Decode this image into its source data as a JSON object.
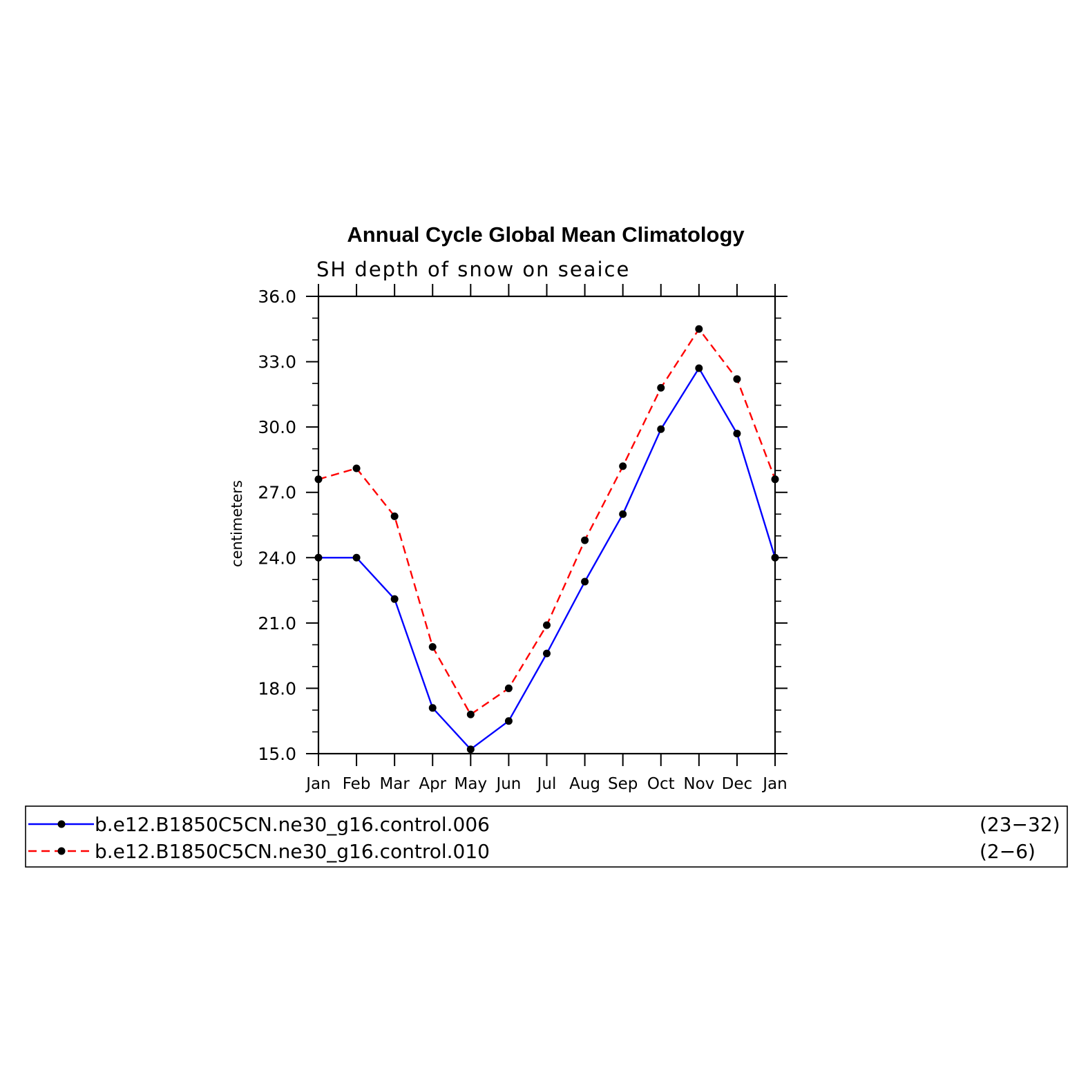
{
  "chart_data": {
    "type": "line",
    "title": "Annual Cycle Global Mean Climatology",
    "subtitle": "SH depth of snow on seaice",
    "xlabel": "",
    "ylabel": "centimeters",
    "categories": [
      "Jan",
      "Feb",
      "Mar",
      "Apr",
      "May",
      "Jun",
      "Jul",
      "Aug",
      "Sep",
      "Oct",
      "Nov",
      "Dec",
      "Jan"
    ],
    "ylim": [
      15.0,
      36.0
    ],
    "yticks": [
      "15.0",
      "18.0",
      "21.0",
      "24.0",
      "27.0",
      "30.0",
      "33.0",
      "36.0"
    ],
    "grid": false,
    "legend_position": "bottom",
    "series": [
      {
        "name": "b.e12.B1850C5CN.ne30_g16.control.006",
        "years": "(23−32)",
        "color": "#0000ff",
        "dash": "solid",
        "values": [
          24.0,
          24.0,
          22.1,
          17.1,
          15.2,
          16.5,
          19.6,
          22.9,
          26.0,
          29.9,
          32.7,
          29.7,
          24.0
        ]
      },
      {
        "name": "b.e12.B1850C5CN.ne30_g16.control.010",
        "years": "(2−6)",
        "color": "#ff0000",
        "dash": "dashed",
        "values": [
          27.6,
          28.1,
          25.9,
          19.9,
          16.8,
          18.0,
          20.9,
          24.8,
          28.2,
          31.8,
          34.5,
          32.2,
          27.6
        ]
      }
    ],
    "marker_color": "#000000"
  }
}
